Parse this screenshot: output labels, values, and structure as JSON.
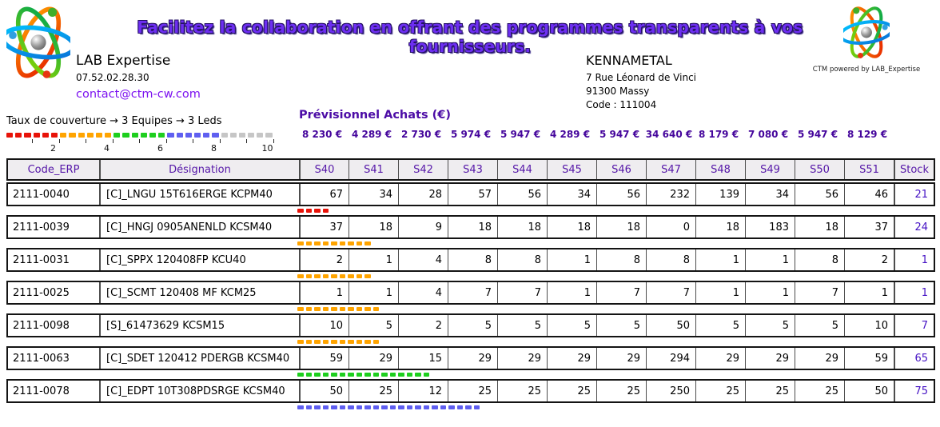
{
  "page": {
    "title_banner": "Facilitez la collaboration en offrant des programmes transparents à vos fournisseurs.",
    "provider": {
      "name": "LAB Expertise",
      "phone": "07.52.02.28.30",
      "email": "contact@ctm-cw.com"
    },
    "customer": {
      "name": "KENNAMETAL",
      "address_line1": "7 Rue Léonard de Vinci",
      "address_line2": "91300 Massy",
      "code": "Code : 111004"
    },
    "branding_caption": "CTM powered by LAB_Expertise"
  },
  "coverage_legend": {
    "label": "Taux de couverture → 3 Equipes → 3 Leds",
    "segments": [
      {
        "color_name": "red",
        "color": "#e81309",
        "dashes": 6
      },
      {
        "color_name": "orange",
        "color": "#ffa400",
        "dashes": 6
      },
      {
        "color_name": "green",
        "color": "#1ecf1e",
        "dashes": 6
      },
      {
        "color_name": "blue",
        "color": "#5f5ff0",
        "dashes": 6
      },
      {
        "color_name": "gray",
        "color": "#c6c6c6",
        "dashes": 6
      }
    ],
    "tick_labels": [
      "2",
      "4",
      "6",
      "8",
      "10"
    ]
  },
  "forecast": {
    "title": "Prévisionnel Achats (€)",
    "values": [
      "8 230 €",
      "4 289 €",
      "2 730 €",
      "5 974 €",
      "5 947 €",
      "4 289 €",
      "5 947 €",
      "34 640 €",
      "8 179 €",
      "7 080 €",
      "5 947 €",
      "8 129 €"
    ]
  },
  "table": {
    "columns": [
      "Code_ERP",
      "Désignation",
      "S40",
      "S41",
      "S42",
      "S43",
      "S44",
      "S45",
      "S46",
      "S47",
      "S48",
      "S49",
      "S50",
      "S51",
      "Stock"
    ],
    "rows": [
      {
        "code": "2111-0040",
        "designation": "[C]_LNGU 15T616ERGE KCPM40",
        "values": [
          67,
          34,
          28,
          57,
          56,
          34,
          56,
          232,
          139,
          34,
          56,
          46
        ],
        "stock": 21,
        "coverage_led": {
          "color": "red",
          "dashes": 4
        }
      },
      {
        "code": "2111-0039",
        "designation": "[C]_HNGJ 0905ANENLD KCSM40",
        "values": [
          37,
          18,
          9,
          18,
          18,
          18,
          18,
          0,
          18,
          183,
          18,
          37
        ],
        "stock": 24,
        "coverage_led": {
          "color": "orange",
          "dashes": 9
        }
      },
      {
        "code": "2111-0031",
        "designation": "[C]_SPPX 120408FP KCU40",
        "values": [
          2,
          1,
          4,
          8,
          8,
          1,
          8,
          8,
          1,
          1,
          8,
          2
        ],
        "stock": 1,
        "coverage_led": {
          "color": "orange",
          "dashes": 9
        }
      },
      {
        "code": "2111-0025",
        "designation": "[C]_SCMT 120408 MF KCM25",
        "values": [
          1,
          1,
          4,
          7,
          7,
          1,
          7,
          7,
          1,
          1,
          7,
          1
        ],
        "stock": 1,
        "coverage_led": {
          "color": "orange",
          "dashes": 10
        }
      },
      {
        "code": "2111-0098",
        "designation": "[S]_61473629 KCSM15",
        "values": [
          10,
          5,
          2,
          5,
          5,
          5,
          5,
          50,
          5,
          5,
          5,
          10
        ],
        "stock": 7,
        "coverage_led": {
          "color": "orange",
          "dashes": 10
        }
      },
      {
        "code": "2111-0063",
        "designation": "[C]_SDET 120412 PDERGB KCSM40",
        "values": [
          59,
          29,
          15,
          29,
          29,
          29,
          29,
          294,
          29,
          29,
          29,
          59
        ],
        "stock": 65,
        "coverage_led": {
          "color": "green",
          "dashes": 16
        }
      },
      {
        "code": "2111-0078",
        "designation": "[C]_EDPT 10T308PDSRGE KCSM40",
        "values": [
          50,
          25,
          12,
          25,
          25,
          25,
          25,
          250,
          25,
          25,
          25,
          50
        ],
        "stock": 75,
        "coverage_led": {
          "color": "blue",
          "dashes": 22
        }
      }
    ]
  },
  "colors": {
    "accent_purple": "#5516a8",
    "money_purple": "#45069c",
    "stock_purple": "#4512c4",
    "banner_purple": "#6d2ef2",
    "header_bg": "#efedf0"
  }
}
